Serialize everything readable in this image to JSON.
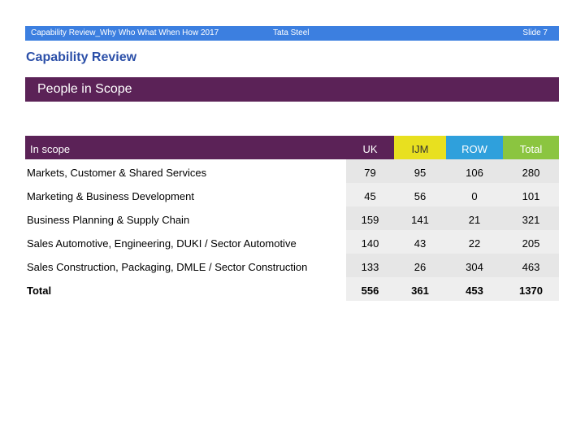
{
  "header": {
    "document": "Capability Review_Why Who What When How 2017",
    "company": "Tata Steel",
    "slide": "Slide 7"
  },
  "section_title": "Capability Review",
  "banner_title": "People in Scope",
  "colors": {
    "header_bar": "#3c7fe0",
    "banner": "#5b2257",
    "uk_header": "#5b2257",
    "ijm_header": "#e8e01f",
    "row_header": "#2fa0dc",
    "total_header": "#8bc540"
  },
  "table": {
    "label_header": "In scope",
    "columns": [
      "UK",
      "IJM",
      "ROW",
      "Total"
    ],
    "rows": [
      {
        "label": "Markets, Customer & Shared Services",
        "values": [
          "79",
          "95",
          "106",
          "280"
        ]
      },
      {
        "label": "Marketing & Business Development",
        "values": [
          "45",
          "56",
          "0",
          "101"
        ]
      },
      {
        "label": "Business Planning & Supply Chain",
        "values": [
          "159",
          "141",
          "21",
          "321"
        ]
      },
      {
        "label": "Sales Automotive, Engineering, DUKI / Sector Automotive",
        "values": [
          "140",
          "43",
          "22",
          "205"
        ]
      },
      {
        "label": "Sales Construction, Packaging, DMLE / Sector Construction",
        "values": [
          "133",
          "26",
          "304",
          "463"
        ]
      }
    ],
    "total_row": {
      "label": "Total",
      "values": [
        "556",
        "361",
        "453",
        "1370"
      ]
    }
  }
}
